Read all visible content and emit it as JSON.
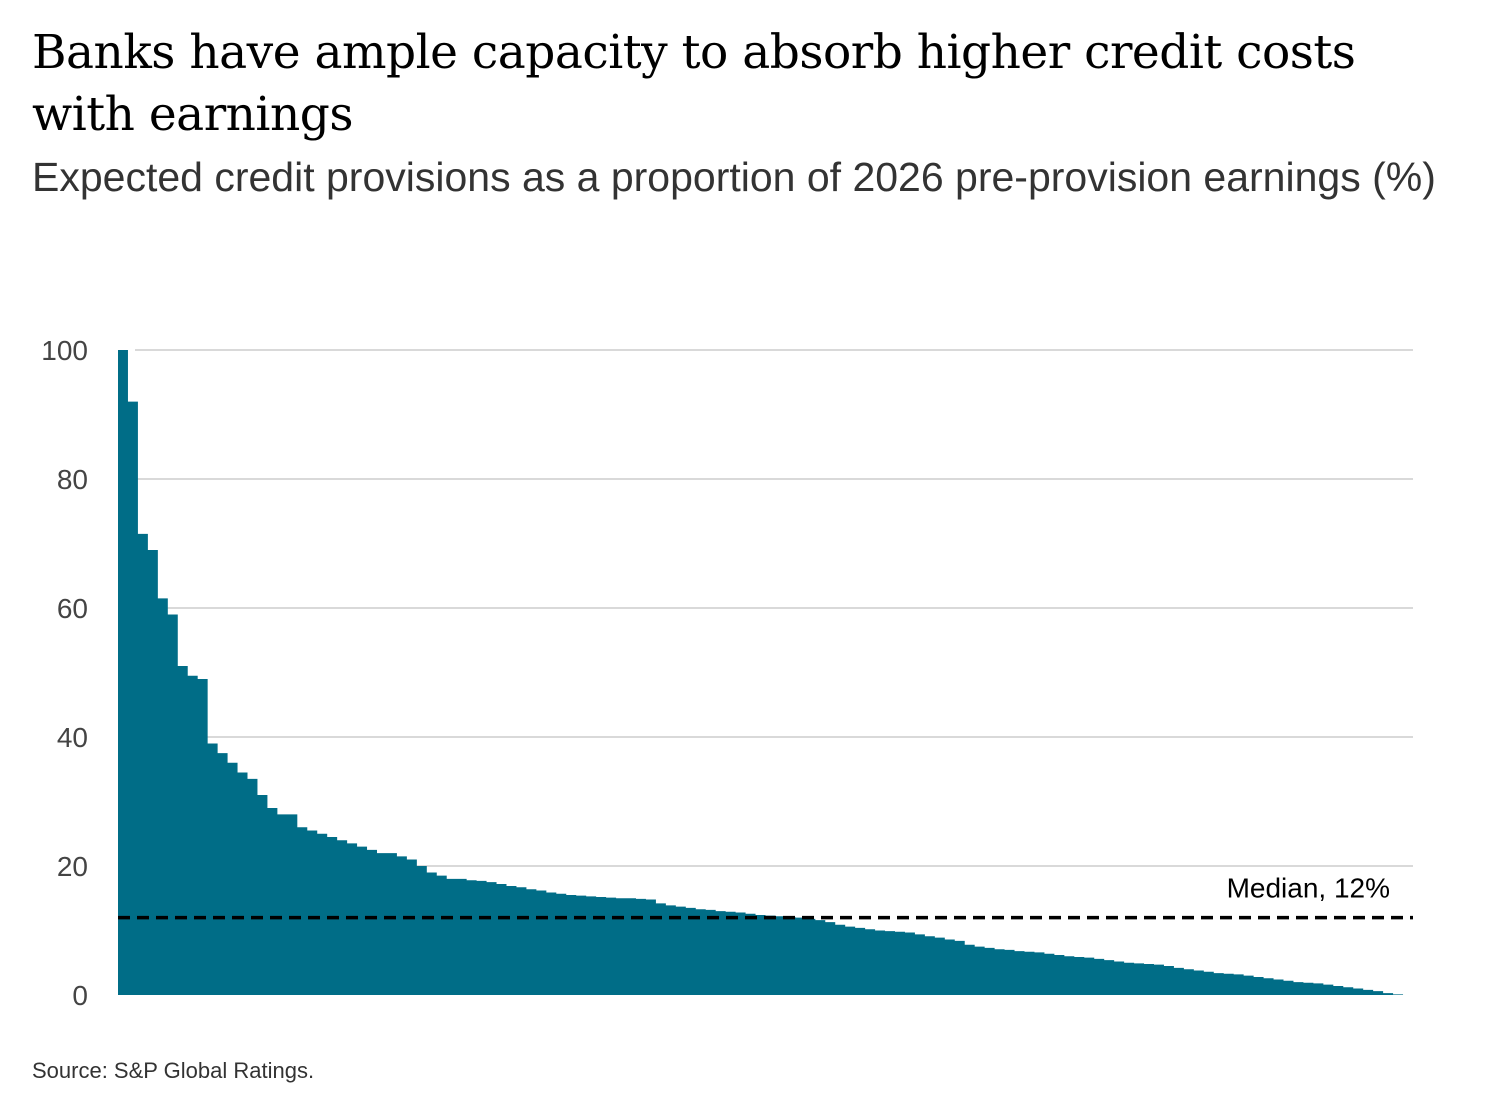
{
  "title": "Banks have ample capacity to absorb higher credit costs with earnings",
  "subtitle": "Expected credit provisions as a proportion of 2026 pre-provision earnings (%)",
  "source": "Source: S&P Global Ratings.",
  "colors": {
    "area": "#006d87",
    "grid": "#d9d9d9",
    "median": "#000000"
  },
  "chart_data": {
    "type": "area",
    "xlabel": "",
    "ylabel": "",
    "ylim": [
      0,
      100
    ],
    "yticks": [
      "0",
      "20",
      "40",
      "60",
      "80",
      "100"
    ],
    "grid": true,
    "values": [
      100,
      92,
      71.5,
      69,
      61.5,
      59,
      51,
      49.5,
      49,
      39,
      37.5,
      36,
      34.5,
      33.5,
      31,
      29,
      28,
      28,
      26,
      25.5,
      25,
      24.5,
      24,
      23.5,
      23,
      22.5,
      22,
      22,
      21.5,
      21,
      20,
      19,
      18.5,
      18,
      18,
      17.8,
      17.7,
      17.5,
      17.2,
      16.9,
      16.7,
      16.4,
      16.2,
      15.9,
      15.7,
      15.5,
      15.4,
      15.3,
      15.2,
      15.1,
      15.0,
      15.0,
      14.9,
      14.8,
      14.2,
      13.9,
      13.7,
      13.5,
      13.3,
      13.2,
      13.0,
      12.9,
      12.8,
      12.6,
      12.4,
      12.3,
      12.2,
      12.1,
      12.0,
      11.8,
      11.6,
      11.3,
      10.9,
      10.6,
      10.4,
      10.2,
      10.0,
      9.9,
      9.8,
      9.7,
      9.4,
      9.1,
      8.9,
      8.6,
      8.4,
      7.8,
      7.5,
      7.3,
      7.1,
      7.0,
      6.8,
      6.7,
      6.6,
      6.4,
      6.2,
      6.0,
      5.9,
      5.8,
      5.6,
      5.4,
      5.2,
      5.0,
      4.9,
      4.8,
      4.7,
      4.5,
      4.2,
      4.0,
      3.8,
      3.6,
      3.4,
      3.3,
      3.2,
      3.0,
      2.8,
      2.6,
      2.4,
      2.2,
      2.0,
      1.9,
      1.8,
      1.6,
      1.4,
      1.2,
      1.0,
      0.8,
      0.6,
      0.3,
      0.1,
      0
    ],
    "median": {
      "value": 12,
      "label": "Median, 12%"
    }
  }
}
